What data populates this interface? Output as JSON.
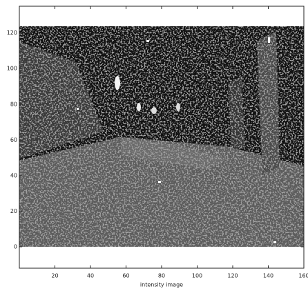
{
  "chart_data": {
    "type": "image",
    "xlabel": "intensity image",
    "xlim": [
      0,
      160
    ],
    "ylim": [
      -12,
      135
    ],
    "xticks": [
      20,
      40,
      60,
      80,
      100,
      120,
      140,
      160
    ],
    "yticks": [
      0,
      20,
      40,
      60,
      80,
      100,
      120
    ]
  }
}
